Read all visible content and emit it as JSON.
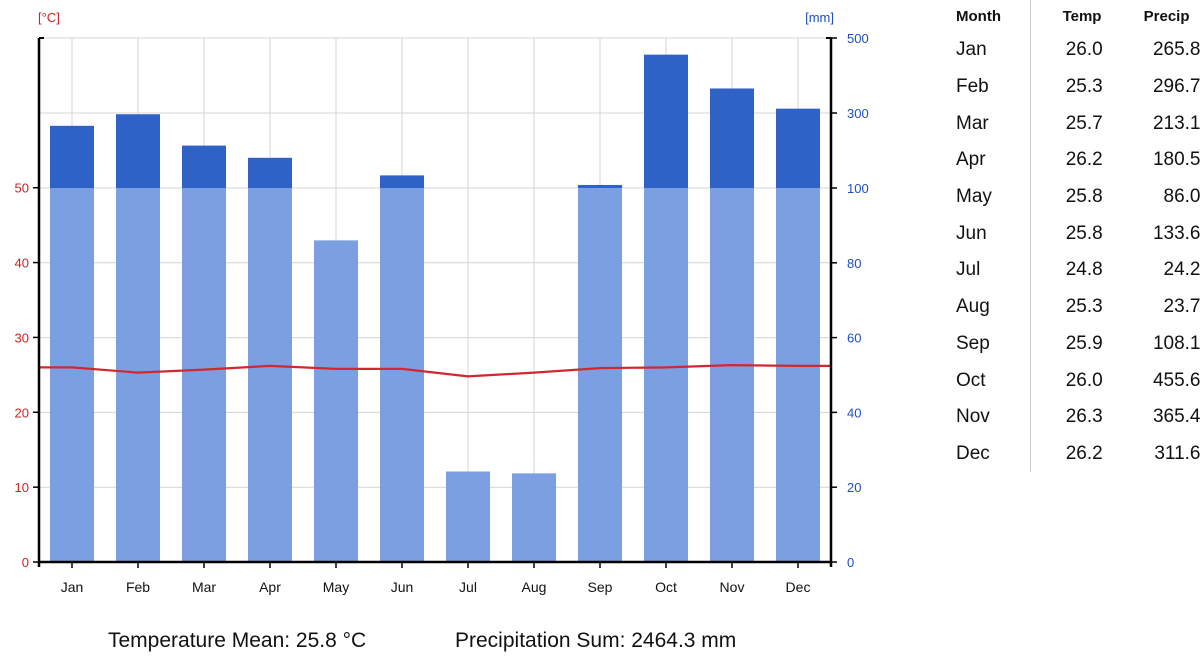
{
  "chart_data": {
    "type": "bar",
    "categories": [
      "Jan",
      "Feb",
      "Mar",
      "Apr",
      "May",
      "Jun",
      "Jul",
      "Aug",
      "Sep",
      "Oct",
      "Nov",
      "Dec"
    ],
    "series": [
      {
        "name": "Precip",
        "axis": "right",
        "kind": "bar",
        "unit": "mm",
        "values": [
          265.8,
          296.7,
          213.1,
          180.5,
          86.0,
          133.6,
          24.2,
          23.7,
          108.1,
          455.6,
          365.4,
          311.6
        ]
      },
      {
        "name": "Temp",
        "axis": "left",
        "kind": "line",
        "unit": "°C",
        "values": [
          26.0,
          25.3,
          25.7,
          26.2,
          25.8,
          25.8,
          24.8,
          25.3,
          25.9,
          26.0,
          26.3,
          26.2
        ]
      }
    ],
    "left_axis": {
      "label": "[°C]",
      "ticks": [
        0,
        10,
        20,
        30,
        40,
        50
      ],
      "range": [
        0,
        70
      ]
    },
    "right_axis": {
      "label": "[mm]",
      "ticks": [
        0,
        20,
        40,
        60,
        80,
        100,
        300,
        500
      ],
      "break_at": 100,
      "upper_range": [
        100,
        500
      ],
      "range": [
        0,
        500
      ]
    },
    "grid": true,
    "colors": {
      "bar_lower": "#7b9fe0",
      "bar_upper": "#2f62c7",
      "temp_line": "#d0282e",
      "left_axis_label": "#cc2222",
      "right_axis_label": "#1f4fbf",
      "grid": "#d4d4d4"
    }
  },
  "table": {
    "headers": {
      "month": "Month",
      "temp": "Temp",
      "precip": "Precip"
    },
    "rows": [
      {
        "month": "Jan",
        "temp": "26.0",
        "precip": "265.8"
      },
      {
        "month": "Feb",
        "temp": "25.3",
        "precip": "296.7"
      },
      {
        "month": "Mar",
        "temp": "25.7",
        "precip": "213.1"
      },
      {
        "month": "Apr",
        "temp": "26.2",
        "precip": "180.5"
      },
      {
        "month": "May",
        "temp": "25.8",
        "precip": "86.0"
      },
      {
        "month": "Jun",
        "temp": "25.8",
        "precip": "133.6"
      },
      {
        "month": "Jul",
        "temp": "24.8",
        "precip": "24.2"
      },
      {
        "month": "Aug",
        "temp": "25.3",
        "precip": "23.7"
      },
      {
        "month": "Sep",
        "temp": "25.9",
        "precip": "108.1"
      },
      {
        "month": "Oct",
        "temp": "26.0",
        "precip": "455.6"
      },
      {
        "month": "Nov",
        "temp": "26.3",
        "precip": "365.4"
      },
      {
        "month": "Dec",
        "temp": "26.2",
        "precip": "311.6"
      }
    ]
  },
  "summary": {
    "temperature_mean": "Temperature Mean: 25.8 °C",
    "precipitation_sum": "Precipitation Sum: 2464.3 mm"
  }
}
